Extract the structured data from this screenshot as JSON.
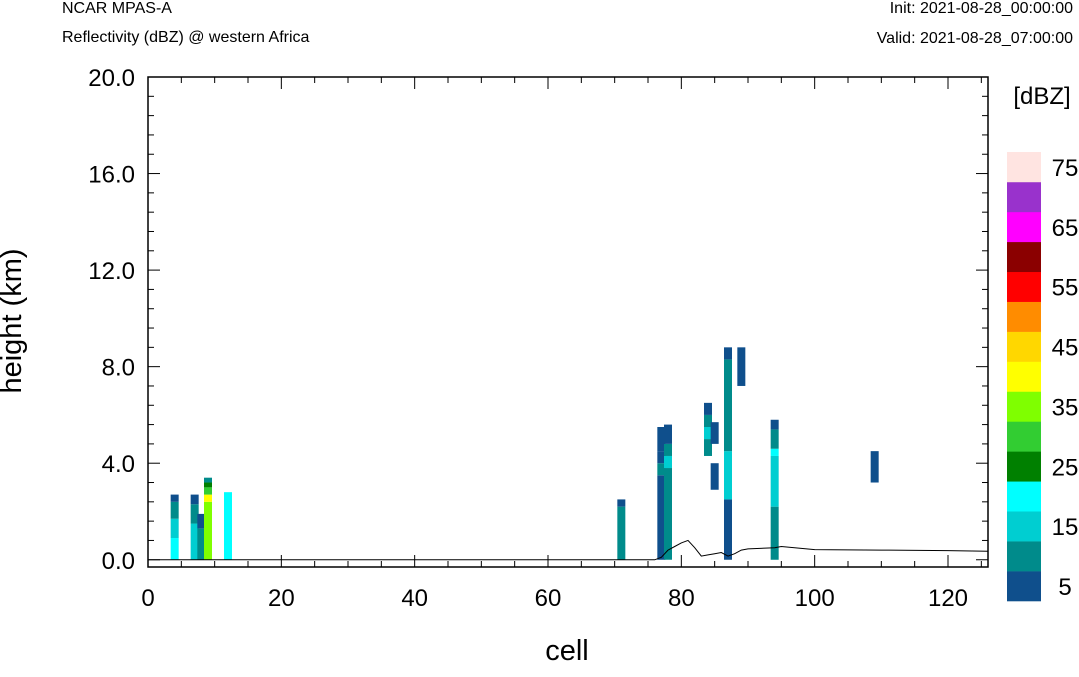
{
  "header": {
    "title": "NCAR MPAS-A",
    "subtitle": "Reflectivity (dBZ) @ western Africa",
    "init": "Init: 2021-08-28_00:00:00",
    "valid": "Valid: 2021-08-28_07:00:00"
  },
  "chart_data": {
    "type": "heatmap",
    "xlabel": "cell",
    "ylabel": "height (km)",
    "xlim": [
      0,
      126
    ],
    "ylim": [
      -0.3,
      20
    ],
    "x_ticks": [
      0,
      20,
      40,
      60,
      80,
      100,
      120
    ],
    "x_tick_labels": [
      "0",
      "20",
      "40",
      "60",
      "80",
      "100",
      "120"
    ],
    "y_ticks": [
      0,
      4,
      8,
      12,
      16,
      20
    ],
    "y_tick_labels": [
      "0.0",
      "4.0",
      "8.0",
      "12.0",
      "16.0",
      "20.0"
    ],
    "colorbar": {
      "unit_label": "[dBZ]",
      "levels": [
        5,
        10,
        15,
        20,
        25,
        30,
        35,
        40,
        45,
        50,
        55,
        60,
        65,
        70,
        75
      ],
      "tick_labels": [
        "5",
        "15",
        "25",
        "35",
        "45",
        "55",
        "65",
        "75"
      ],
      "colors": [
        "#0F4F8C",
        "#008B8B",
        "#00CED1",
        "#00FFFF",
        "#008000",
        "#32CD32",
        "#7FFF00",
        "#FFFF00",
        "#FFD700",
        "#FF8C00",
        "#FF0000",
        "#8B0000",
        "#FF00FF",
        "#9932CC",
        "#FFE4E1"
      ]
    },
    "cells": [
      {
        "x": 4,
        "segments": [
          [
            0,
            0.9,
            20
          ],
          [
            0.9,
            1.7,
            15
          ],
          [
            1.7,
            2.4,
            10
          ],
          [
            2.4,
            2.7,
            5
          ]
        ]
      },
      {
        "x": 7,
        "segments": [
          [
            0,
            1.5,
            15
          ],
          [
            1.5,
            2.3,
            10
          ],
          [
            2.3,
            2.7,
            5
          ]
        ]
      },
      {
        "x": 8,
        "segments": [
          [
            0,
            1.3,
            10
          ],
          [
            1.3,
            1.9,
            5
          ]
        ]
      },
      {
        "x": 9,
        "segments": [
          [
            0,
            2.4,
            35
          ],
          [
            2.4,
            2.7,
            40
          ],
          [
            2.7,
            3.0,
            30
          ],
          [
            3.0,
            3.2,
            25
          ],
          [
            3.2,
            3.4,
            10
          ]
        ]
      },
      {
        "x": 12,
        "segments": [
          [
            0,
            2.8,
            20
          ]
        ]
      },
      {
        "x": 71,
        "segments": [
          [
            0,
            2.2,
            10
          ],
          [
            2.2,
            2.5,
            5
          ]
        ]
      },
      {
        "x": 77,
        "segments": [
          [
            0,
            3.5,
            5
          ],
          [
            3.5,
            4.0,
            10
          ],
          [
            4.0,
            4.5,
            5
          ],
          [
            4.5,
            5.5,
            5
          ]
        ]
      },
      {
        "x": 78,
        "segments": [
          [
            0,
            3.8,
            10
          ],
          [
            3.8,
            4.3,
            15
          ],
          [
            4.3,
            4.8,
            10
          ],
          [
            4.8,
            5.6,
            5
          ]
        ]
      },
      {
        "x": 84,
        "segments": [
          [
            4.3,
            5.0,
            10
          ],
          [
            5.0,
            5.5,
            15
          ],
          [
            5.5,
            6.0,
            10
          ],
          [
            6.0,
            6.5,
            5
          ]
        ]
      },
      {
        "x": 85,
        "segments": [
          [
            4.8,
            5.7,
            5
          ]
        ]
      },
      {
        "x": 85,
        "segments": [
          [
            2.9,
            4.0,
            5
          ]
        ]
      },
      {
        "x": 87,
        "segments": [
          [
            0,
            2.5,
            5
          ],
          [
            2.5,
            4.5,
            15
          ],
          [
            4.5,
            5.5,
            10
          ],
          [
            5.5,
            8.3,
            10
          ],
          [
            8.3,
            8.8,
            5
          ]
        ]
      },
      {
        "x": 89,
        "segments": [
          [
            7.2,
            8.8,
            5
          ]
        ]
      },
      {
        "x": 94,
        "segments": [
          [
            0,
            2.2,
            10
          ],
          [
            2.2,
            4.3,
            15
          ],
          [
            4.3,
            4.6,
            20
          ],
          [
            4.6,
            5.4,
            10
          ],
          [
            5.4,
            5.8,
            5
          ]
        ]
      },
      {
        "x": 109,
        "segments": [
          [
            3.2,
            4.5,
            5
          ]
        ]
      }
    ],
    "terrain": {
      "x": [
        0,
        76,
        77,
        78,
        79,
        80,
        81,
        82,
        83,
        84,
        85,
        86,
        87,
        88,
        89,
        90,
        94,
        95,
        100,
        110,
        120,
        126
      ],
      "y": [
        0,
        0,
        0.1,
        0.4,
        0.55,
        0.7,
        0.8,
        0.5,
        0.15,
        0.2,
        0.25,
        0.3,
        0.15,
        0.25,
        0.4,
        0.45,
        0.5,
        0.55,
        0.42,
        0.4,
        0.38,
        0.35
      ]
    }
  }
}
